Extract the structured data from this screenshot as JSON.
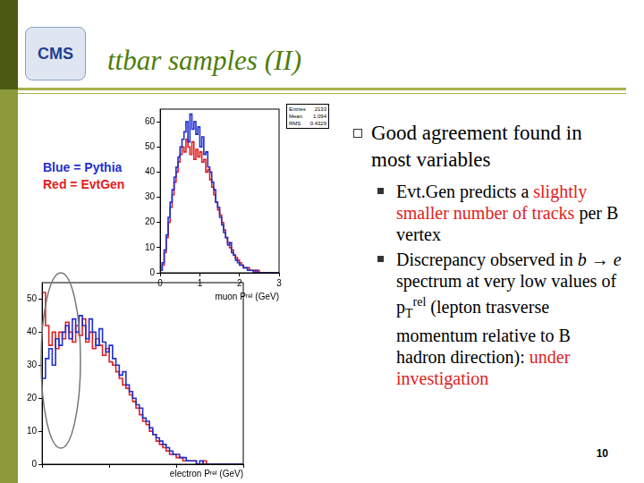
{
  "title": "ttbar samples (II)",
  "logo_text": "CMS",
  "notes": [
    {
      "text": "Blue = Pythia",
      "color": "#1f2fd0"
    },
    {
      "text": "Red = EvtGen",
      "color": "#e02020"
    }
  ],
  "bullets": [
    {
      "segments": [
        {
          "text": "Good agreement found in most variables"
        }
      ],
      "sub_bullets": [
        {
          "segments": [
            {
              "text": "Evt.Gen predicts a "
            },
            {
              "text": "slightly smaller number of tracks",
              "color": "#e02020"
            },
            {
              "text": " per B vertex"
            }
          ]
        },
        {
          "segments": [
            {
              "text": "Discrepancy observed in "
            },
            {
              "text": "b",
              "italic": true
            },
            {
              "text": " → "
            },
            {
              "text": "e",
              "italic": true
            },
            {
              "text": " spectrum at very low values of p"
            },
            {
              "sub": "T"
            },
            {
              "sup": "rel"
            },
            {
              "text": " (lepton trasverse momentum relative to B hadron direction): "
            },
            {
              "text": "under investigation",
              "color": "#e02020"
            }
          ]
        }
      ]
    }
  ],
  "page": 10,
  "chart_data": [
    {
      "type": "histogram",
      "x_label": "muon Pʳᵉˡ (GeV)",
      "bins": [
        0,
        0.05,
        0.1,
        0.15,
        0.2,
        0.25,
        0.3,
        0.35,
        0.4,
        0.45,
        0.5,
        0.55,
        0.6,
        0.65,
        0.7,
        0.75,
        0.8,
        0.85,
        0.9,
        0.95,
        1,
        1.05,
        1.1,
        1.15,
        1.2,
        1.25,
        1.3,
        1.35,
        1.4,
        1.45,
        1.5,
        1.55,
        1.6,
        1.65,
        1.7,
        1.75,
        1.8,
        1.85,
        1.9,
        1.95,
        2,
        2.05,
        2.1,
        2.15,
        2.2,
        2.25,
        2.3,
        2.35,
        2.4,
        2.45,
        2.5,
        2.55,
        2.6,
        2.65,
        2.7,
        2.75,
        2.8,
        2.85,
        2.9,
        2.95,
        3
      ],
      "series": [
        {
          "color": "#1f2fd0",
          "values": [
            1,
            4,
            9,
            15,
            22,
            28,
            33,
            38,
            42,
            46,
            50,
            53,
            56,
            60,
            52,
            63,
            57,
            60,
            55,
            58,
            50,
            54,
            47,
            48,
            42,
            40,
            36,
            33,
            28,
            26,
            22,
            19,
            16,
            14,
            11,
            12,
            8,
            7,
            5,
            4,
            3,
            3,
            2,
            2,
            1,
            1,
            1,
            0,
            1,
            0,
            0,
            0,
            0,
            0,
            0,
            0,
            0,
            0,
            0,
            0
          ]
        },
        {
          "color": "#e02020",
          "values": [
            1,
            3,
            8,
            14,
            20,
            26,
            31,
            36,
            40,
            44,
            47,
            50,
            48,
            53,
            50,
            47,
            52,
            45,
            49,
            46,
            48,
            44,
            45,
            40,
            41,
            37,
            34,
            31,
            28,
            25,
            23,
            20,
            17,
            14,
            12,
            10,
            9,
            7,
            6,
            5,
            4,
            3,
            2,
            2,
            2,
            1,
            1,
            1,
            0,
            1,
            0,
            0,
            0,
            0,
            0,
            0,
            0,
            0,
            0,
            0
          ]
        }
      ],
      "xlim": [
        0,
        3
      ],
      "xticks": [
        0,
        1,
        2,
        3
      ],
      "ylim": [
        0,
        65
      ],
      "yticks": [
        0,
        10,
        20,
        30,
        40,
        50,
        60
      ],
      "grid": false,
      "stats": [
        {
          "label": "Entries",
          "value": 2133
        },
        {
          "label": "Mean",
          "value": 1.094
        },
        {
          "label": "RMS",
          "value": 0.4329
        }
      ]
    },
    {
      "type": "histogram",
      "x_label": "electron Pʳᵉˡ (GeV)",
      "bins": [
        0,
        0.05,
        0.1,
        0.15,
        0.2,
        0.25,
        0.3,
        0.35,
        0.4,
        0.45,
        0.5,
        0.55,
        0.6,
        0.65,
        0.7,
        0.75,
        0.8,
        0.85,
        0.9,
        0.95,
        1,
        1.05,
        1.1,
        1.15,
        1.2,
        1.25,
        1.3,
        1.35,
        1.4,
        1.45,
        1.5,
        1.55,
        1.6,
        1.65,
        1.7,
        1.75,
        1.8,
        1.85,
        1.9,
        1.95,
        2,
        2.05,
        2.1,
        2.15,
        2.2,
        2.25,
        2.3,
        2.35,
        2.4,
        2.45,
        2.5,
        2.55,
        2.6,
        2.65,
        2.7,
        2.75,
        2.8,
        2.85,
        2.9,
        2.95,
        3
      ],
      "series": [
        {
          "color": "#1f2fd0",
          "values": [
            26,
            32,
            35,
            30,
            38,
            36,
            40,
            42,
            38,
            44,
            40,
            45,
            42,
            38,
            44,
            40,
            36,
            41,
            37,
            34,
            36,
            32,
            30,
            27,
            28,
            24,
            22,
            20,
            18,
            17,
            14,
            13,
            11,
            9,
            8,
            7,
            6,
            5,
            4,
            3,
            3,
            2,
            2,
            1,
            1,
            1,
            0,
            1,
            0,
            0,
            0,
            0,
            0,
            0,
            0,
            0,
            0,
            0,
            0,
            0
          ]
        },
        {
          "color": "#e02020",
          "values": [
            52,
            42,
            36,
            40,
            35,
            40,
            38,
            43,
            40,
            37,
            42,
            39,
            44,
            37,
            40,
            35,
            38,
            36,
            33,
            35,
            31,
            30,
            28,
            26,
            24,
            23,
            21,
            19,
            17,
            15,
            13,
            12,
            10,
            9,
            7,
            6,
            5,
            4,
            3,
            3,
            2,
            2,
            1,
            1,
            1,
            1,
            0,
            0,
            1,
            0,
            0,
            0,
            0,
            0,
            0,
            0,
            0,
            0,
            0,
            0
          ]
        }
      ],
      "xlim": [
        0,
        3
      ],
      "xticks": [
        0,
        1,
        2,
        3
      ],
      "ylim": [
        0,
        55
      ],
      "yticks": [
        0,
        10,
        20,
        30,
        40,
        50
      ],
      "grid": false,
      "tick_labels": "y"
    }
  ]
}
